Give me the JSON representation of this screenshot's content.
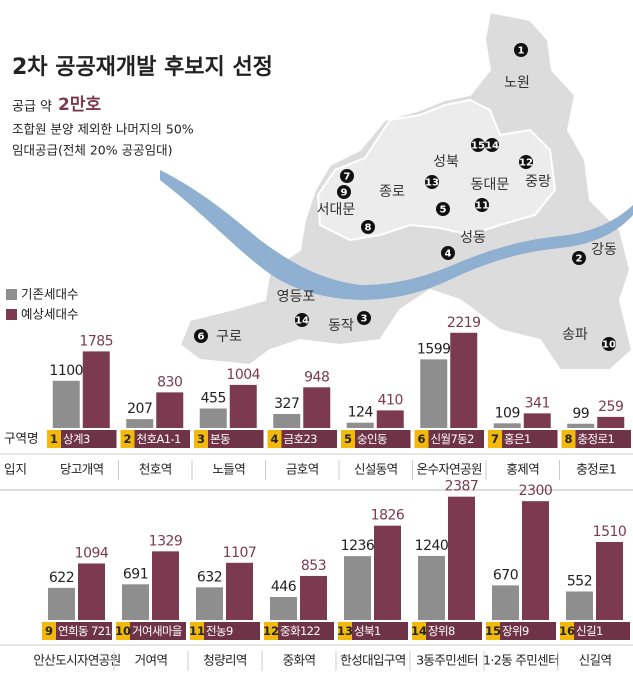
{
  "title": "2차 공공재개발 후보지 선정",
  "info": {
    "supply_prefix": "공급 약",
    "supply_amount": "2만호",
    "line1": "조합원 분양 제외한 나머지의 50%",
    "line2": "임대공급(전체 20% 공공임대)"
  },
  "map": {
    "districts": [
      "노원",
      "중랑",
      "동대문",
      "성북",
      "종로",
      "서대문",
      "성동",
      "강동",
      "송파",
      "영등포",
      "동작",
      "구로"
    ]
  },
  "chart_data": [
    {
      "type": "bar",
      "category_label": "구역명",
      "location_label": "입지",
      "ids": [
        "1",
        "2",
        "3",
        "4",
        "5",
        "6",
        "7",
        "8"
      ],
      "categories": [
        "상계3",
        "천호A1-1",
        "본동",
        "금호23",
        "숭인동",
        "신월7동2",
        "홍은1",
        "충정로1"
      ],
      "locations": [
        "당고개역",
        "천호역",
        "노들역",
        "금호역",
        "신설동역",
        "온수자연공원",
        "홍제역",
        "충정로1"
      ],
      "series": [
        {
          "name": "기존세대수",
          "color": "#8e8e8e",
          "values": [
            1100,
            207,
            455,
            327,
            124,
            1599,
            109,
            99
          ]
        },
        {
          "name": "예상세대수",
          "color": "#7c3a50",
          "values": [
            1785,
            830,
            1004,
            948,
            410,
            2219,
            341,
            259
          ]
        }
      ],
      "ylim": [
        0,
        2400
      ]
    },
    {
      "type": "bar",
      "ids": [
        "9",
        "10",
        "11",
        "12",
        "13",
        "14",
        "15",
        "16"
      ],
      "categories": [
        "연희동 721-6",
        "거여새마을",
        "전농9",
        "중화122",
        "성북1",
        "장위8",
        "장위9",
        "신길1"
      ],
      "locations": [
        "안산도시자연공원",
        "거여역",
        "청량리역",
        "중화역",
        "한성대입구역",
        "3동주민센터",
        "1·2동 주민센터",
        "신길역"
      ],
      "series": [
        {
          "name": "기존세대수",
          "color": "#8e8e8e",
          "values": [
            622,
            691,
            632,
            446,
            1236,
            1240,
            670,
            552
          ]
        },
        {
          "name": "예상세대수",
          "color": "#7c3a50",
          "values": [
            1094,
            1329,
            1107,
            853,
            1826,
            2387,
            2300,
            1510
          ]
        }
      ],
      "ylim": [
        0,
        2400
      ]
    }
  ]
}
